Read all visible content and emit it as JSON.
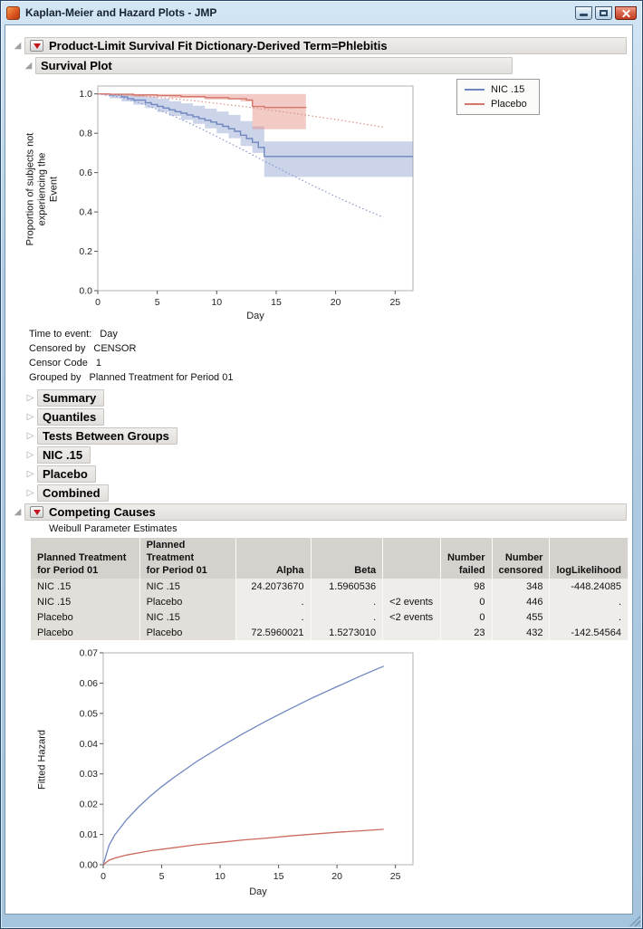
{
  "window": {
    "title": "Kaplan-Meier and Hazard Plots - JMP"
  },
  "icons": {
    "disclosure_open": "◢",
    "disclosure_collapsed": "▷"
  },
  "palette": {
    "series_blue": "#6f86c0",
    "series_red": "#d4766a",
    "red_triangle": "#c4151c"
  },
  "outline": {
    "main": {
      "title": "Product-Limit Survival Fit Dictionary-Derived Term=Phlebitis"
    },
    "survival_plot": {
      "title": "Survival Plot"
    },
    "collapsed_sections": [
      {
        "label": "Summary"
      },
      {
        "label": "Quantiles"
      },
      {
        "label": "Tests Between Groups"
      },
      {
        "label": "NIC .15"
      },
      {
        "label": "Placebo"
      },
      {
        "label": "Combined"
      }
    ],
    "competing_causes": {
      "title": "Competing Causes",
      "subtitle": "Weibull Parameter Estimates"
    }
  },
  "info_lines": [
    {
      "label": "Time to event:",
      "value": "Day"
    },
    {
      "label": "Censored by",
      "value": "CENSOR"
    },
    {
      "label": "Censor Code",
      "value": "1"
    },
    {
      "label": "Grouped by",
      "value": "Planned Treatment for Period 01"
    }
  ],
  "weibull_table": {
    "headers": [
      "Planned Treatment\nfor Period 01",
      "Planned Treatment\nfor Period 01",
      "Alpha",
      "Beta",
      "",
      "Number\nfailed",
      "Number\ncensored",
      "logLikelihood"
    ],
    "rows": [
      [
        "NIC .15",
        "NIC .15",
        "24.2073670",
        "1.5960536",
        "",
        "98",
        "348",
        "-448.24085"
      ],
      [
        "NIC .15",
        "Placebo",
        ".",
        ".",
        "<2 events",
        "0",
        "446",
        "."
      ],
      [
        "Placebo",
        "NIC .15",
        ".",
        ".",
        "<2 events",
        "0",
        "455",
        "."
      ],
      [
        "Placebo",
        "Placebo",
        "72.5960021",
        "1.5273010",
        "",
        "23",
        "432",
        "-142.54564"
      ]
    ]
  },
  "chart_data": [
    {
      "name": "survival",
      "type": "line",
      "title": "Survival Plot",
      "xlabel": "Day",
      "ylabel": "Proportion of subjects not experiencing the Event",
      "ylabel_lines": [
        "Proportion of subjects not",
        "experiencing the",
        "Event"
      ],
      "xlim": [
        0,
        26.5
      ],
      "ylim": [
        0,
        1.04
      ],
      "xticks": [
        0,
        5,
        10,
        15,
        20,
        25
      ],
      "yticks": [
        0,
        0.2,
        0.4,
        0.6,
        0.8,
        1
      ],
      "ytick_decimals": 1,
      "legend_position": "top-right-outside",
      "legend": [
        {
          "label": "NIC .15",
          "color": "#6f86c0"
        },
        {
          "label": "Placebo",
          "color": "#d4766a"
        }
      ],
      "bands": [
        {
          "name": "nic-15-confidence-band",
          "color": "rgba(126,148,201,0.40)",
          "step": true,
          "upper": [
            [
              0,
              1
            ],
            [
              2,
              1
            ],
            [
              3,
              0.995
            ],
            [
              4,
              0.985
            ],
            [
              5,
              0.975
            ],
            [
              6,
              0.963
            ],
            [
              7,
              0.952
            ],
            [
              8,
              0.94
            ],
            [
              9,
              0.925
            ],
            [
              10,
              0.91
            ],
            [
              11,
              0.893
            ],
            [
              12,
              0.862
            ],
            [
              13,
              0.835
            ],
            [
              14,
              0.758
            ],
            [
              26.5,
              0.758
            ]
          ],
          "lower": [
            [
              0,
              1
            ],
            [
              1,
              0.978
            ],
            [
              2,
              0.962
            ],
            [
              3,
              0.945
            ],
            [
              4,
              0.928
            ],
            [
              5,
              0.908
            ],
            [
              6,
              0.888
            ],
            [
              7,
              0.868
            ],
            [
              8,
              0.848
            ],
            [
              9,
              0.825
            ],
            [
              10,
              0.8
            ],
            [
              11,
              0.775
            ],
            [
              12,
              0.735
            ],
            [
              13,
              0.7
            ],
            [
              14,
              0.578
            ],
            [
              26.5,
              0.578
            ]
          ]
        },
        {
          "name": "placebo-confidence-band",
          "color": "rgba(229,140,128,0.45)",
          "step": true,
          "upper": [
            [
              0,
              1
            ],
            [
              17.5,
              1
            ]
          ],
          "lower": [
            [
              0,
              1
            ],
            [
              0.5,
              0.992
            ],
            [
              3,
              0.986
            ],
            [
              6,
              0.979
            ],
            [
              9,
              0.971
            ],
            [
              12,
              0.962
            ],
            [
              13,
              0.82
            ],
            [
              17.5,
              0.82
            ]
          ]
        }
      ],
      "series": [
        {
          "name": "NIC .15",
          "style": "step",
          "color": "#6f86c0",
          "width": 1.4,
          "points": [
            [
              0,
              1
            ],
            [
              1,
              0.995
            ],
            [
              2,
              0.985
            ],
            [
              2.5,
              0.976
            ],
            [
              3,
              0.968
            ],
            [
              4,
              0.955
            ],
            [
              4.5,
              0.946
            ],
            [
              5,
              0.937
            ],
            [
              5.5,
              0.928
            ],
            [
              6,
              0.919
            ],
            [
              6.5,
              0.91
            ],
            [
              7,
              0.902
            ],
            [
              7.5,
              0.893
            ],
            [
              8,
              0.884
            ],
            [
              8.5,
              0.875
            ],
            [
              9,
              0.866
            ],
            [
              9.5,
              0.857
            ],
            [
              10,
              0.846
            ],
            [
              10.5,
              0.835
            ],
            [
              11,
              0.823
            ],
            [
              11.5,
              0.81
            ],
            [
              12,
              0.79
            ],
            [
              12.5,
              0.773
            ],
            [
              13,
              0.754
            ],
            [
              13.5,
              0.728
            ],
            [
              14,
              0.682
            ],
            [
              26.5,
              0.682
            ]
          ]
        },
        {
          "name": "Placebo",
          "style": "step",
          "color": "#d4766a",
          "width": 1.4,
          "points": [
            [
              0,
              1
            ],
            [
              1,
              0.998
            ],
            [
              3,
              0.995
            ],
            [
              5,
              0.991
            ],
            [
              7,
              0.986
            ],
            [
              9,
              0.981
            ],
            [
              11,
              0.975
            ],
            [
              12.5,
              0.969
            ],
            [
              13,
              0.936
            ],
            [
              14,
              0.931
            ],
            [
              17.5,
              0.929
            ]
          ]
        },
        {
          "name": "NIC .15 Weibull fit",
          "style": "dotted",
          "color": "#8595c9",
          "width": 1.2,
          "points": [
            [
              0,
              1
            ],
            [
              2,
              0.981
            ],
            [
              4,
              0.945
            ],
            [
              6,
              0.898
            ],
            [
              8,
              0.843
            ],
            [
              10,
              0.783
            ],
            [
              12,
              0.722
            ],
            [
              14,
              0.659
            ],
            [
              16,
              0.597
            ],
            [
              18,
              0.536
            ],
            [
              20,
              0.478
            ],
            [
              22,
              0.424
            ],
            [
              24,
              0.373
            ]
          ]
        },
        {
          "name": "Placebo Weibull fit",
          "style": "dotted",
          "color": "#dc9186",
          "width": 1.2,
          "points": [
            [
              0,
              1
            ],
            [
              4,
              0.988
            ],
            [
              8,
              0.966
            ],
            [
              12,
              0.938
            ],
            [
              16,
              0.905
            ],
            [
              20,
              0.87
            ],
            [
              24,
              0.831
            ]
          ]
        }
      ]
    },
    {
      "name": "hazard",
      "type": "line",
      "title": "Fitted Hazard",
      "xlabel": "Day",
      "ylabel": "Fitted Hazard",
      "xlim": [
        0,
        26.5
      ],
      "ylim": [
        0,
        0.07
      ],
      "xticks": [
        0,
        5,
        10,
        15,
        20,
        25
      ],
      "yticks": [
        0,
        0.01,
        0.02,
        0.03,
        0.04,
        0.05,
        0.06,
        0.07
      ],
      "ytick_decimals": 2,
      "series": [
        {
          "name": "NIC .15 hazard",
          "color": "#6f86c0",
          "width": 1.3,
          "points": [
            [
              0,
              0
            ],
            [
              0.5,
              0.0065
            ],
            [
              1,
              0.0099
            ],
            [
              2,
              0.0149
            ],
            [
              3,
              0.019
            ],
            [
              4,
              0.0226
            ],
            [
              5,
              0.0258
            ],
            [
              6,
              0.0287
            ],
            [
              8,
              0.0341
            ],
            [
              10,
              0.0389
            ],
            [
              12,
              0.0434
            ],
            [
              14,
              0.0476
            ],
            [
              16,
              0.0515
            ],
            [
              18,
              0.0553
            ],
            [
              20,
              0.0588
            ],
            [
              22,
              0.0623
            ],
            [
              24,
              0.0656
            ]
          ]
        },
        {
          "name": "Placebo hazard",
          "color": "#cc6a5e",
          "width": 1.3,
          "points": [
            [
              0,
              0
            ],
            [
              0.5,
              0.0015
            ],
            [
              1,
              0.0022
            ],
            [
              2,
              0.0032
            ],
            [
              4,
              0.0046
            ],
            [
              6,
              0.0056
            ],
            [
              8,
              0.0066
            ],
            [
              10,
              0.0074
            ],
            [
              12,
              0.0082
            ],
            [
              14,
              0.0088
            ],
            [
              16,
              0.0095
            ],
            [
              18,
              0.0101
            ],
            [
              20,
              0.0107
            ],
            [
              22,
              0.0112
            ],
            [
              24,
              0.0117
            ]
          ]
        }
      ]
    }
  ]
}
